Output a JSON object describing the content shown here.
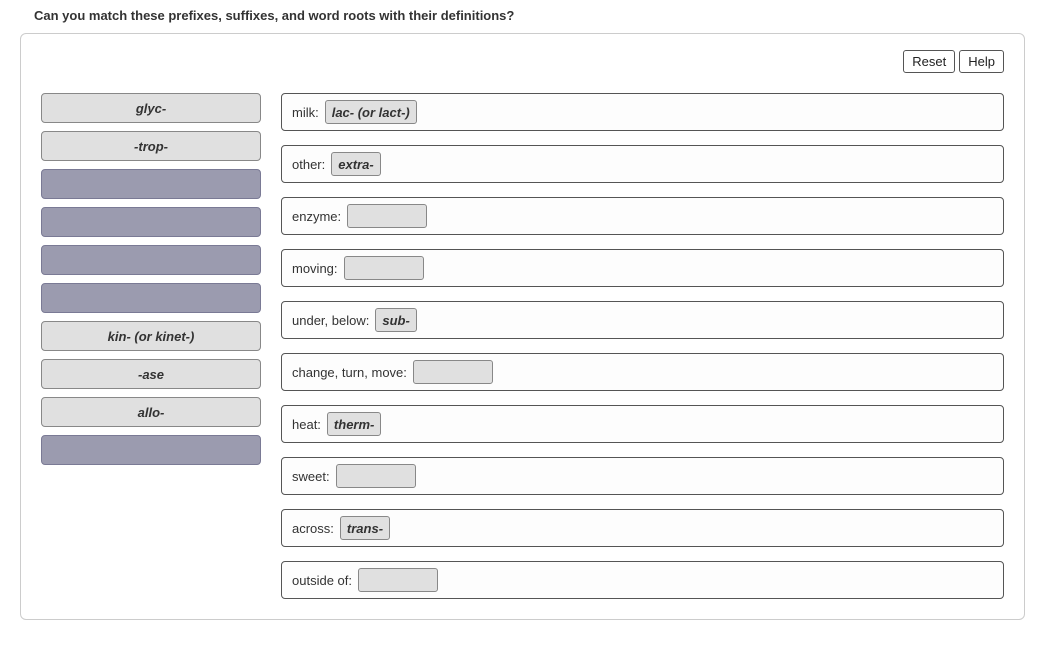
{
  "question": "Can you match these prefixes, suffixes, and word roots with their definitions?",
  "buttons": {
    "reset": "Reset",
    "help": "Help"
  },
  "source_tiles": [
    {
      "label": "glyc-",
      "filled": true
    },
    {
      "label": "-trop-",
      "filled": true
    },
    {
      "label": "",
      "filled": false
    },
    {
      "label": "",
      "filled": false
    },
    {
      "label": "",
      "filled": false
    },
    {
      "label": "",
      "filled": false
    },
    {
      "label": "kin- (or kinet-)",
      "filled": true
    },
    {
      "label": "-ase",
      "filled": true
    },
    {
      "label": "allo-",
      "filled": true
    },
    {
      "label": "",
      "filled": false
    }
  ],
  "targets": [
    {
      "label": "milk:",
      "answer": "lac- (or lact-)"
    },
    {
      "label": "other:",
      "answer": "extra-"
    },
    {
      "label": "enzyme:",
      "answer": ""
    },
    {
      "label": "moving:",
      "answer": ""
    },
    {
      "label": "under, below:",
      "answer": "sub-"
    },
    {
      "label": "change, turn, move:",
      "answer": ""
    },
    {
      "label": "heat:",
      "answer": "therm-"
    },
    {
      "label": "sweet:",
      "answer": ""
    },
    {
      "label": "across:",
      "answer": "trans-"
    },
    {
      "label": "outside of:",
      "answer": ""
    }
  ],
  "colors": {
    "tile_filled_bg": "#e0e0e0",
    "tile_filled_border": "#888888",
    "tile_empty_bg": "#9b9baf",
    "tile_empty_border": "#7a7a95",
    "panel_border": "#cccccc",
    "target_border": "#555555",
    "text": "#333333"
  }
}
